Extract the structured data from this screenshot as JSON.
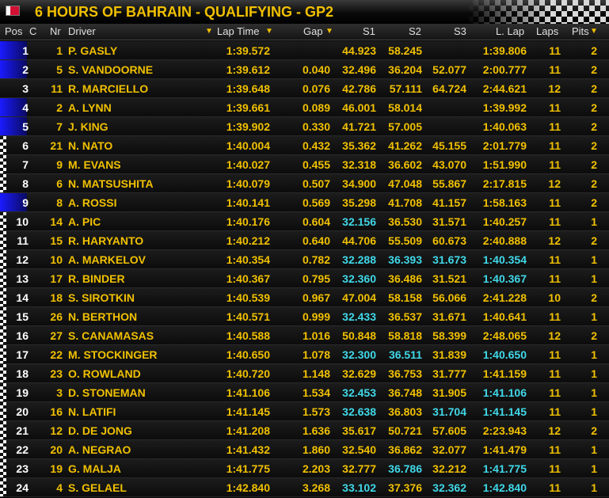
{
  "title": "6 HOURS OF BAHRAIN - QUALIFYING - GP2",
  "headers": {
    "pos": "Pos",
    "c": "C",
    "nr": "Nr",
    "driver": "Driver",
    "lap_time": "Lap Time",
    "gap": "Gap",
    "s1": "S1",
    "s2": "S2",
    "s3": "S3",
    "l_lap": "L. Lap",
    "laps": "Laps",
    "pits": "Pits",
    "sort_arrow": "▼"
  },
  "colors": {
    "accent": "#f0c000",
    "best_sector": "#40d8e8",
    "marker_blue": "#1a1aff"
  },
  "rows": [
    {
      "pos": "1",
      "nr": "1",
      "driver": "P. GASLY",
      "lap_time": "1:39.572",
      "gap": "",
      "s1": "44.923",
      "s2": "58.245",
      "s3": "",
      "l_lap": "1:39.806",
      "laps": "11",
      "pits": "2",
      "marker": "blue",
      "cyan": []
    },
    {
      "pos": "2",
      "nr": "5",
      "driver": "S. VANDOORNE",
      "lap_time": "1:39.612",
      "gap": "0.040",
      "s1": "32.496",
      "s2": "36.204",
      "s3": "52.077",
      "l_lap": "2:00.777",
      "laps": "11",
      "pits": "2",
      "marker": "blue",
      "cyan": []
    },
    {
      "pos": "3",
      "nr": "11",
      "driver": "R. MARCIELLO",
      "lap_time": "1:39.648",
      "gap": "0.076",
      "s1": "42.786",
      "s2": "57.111",
      "s3": "64.724",
      "l_lap": "2:44.621",
      "laps": "12",
      "pits": "2",
      "marker": "none",
      "cyan": []
    },
    {
      "pos": "4",
      "nr": "2",
      "driver": "A. LYNN",
      "lap_time": "1:39.661",
      "gap": "0.089",
      "s1": "46.001",
      "s2": "58.014",
      "s3": "",
      "l_lap": "1:39.992",
      "laps": "11",
      "pits": "2",
      "marker": "blue",
      "cyan": []
    },
    {
      "pos": "5",
      "nr": "7",
      "driver": "J. KING",
      "lap_time": "1:39.902",
      "gap": "0.330",
      "s1": "41.721",
      "s2": "57.005",
      "s3": "",
      "l_lap": "1:40.063",
      "laps": "11",
      "pits": "2",
      "marker": "blue",
      "cyan": []
    },
    {
      "pos": "6",
      "nr": "21",
      "driver": "N. NATO",
      "lap_time": "1:40.004",
      "gap": "0.432",
      "s1": "35.362",
      "s2": "41.262",
      "s3": "45.155",
      "l_lap": "2:01.779",
      "laps": "11",
      "pits": "2",
      "marker": "check",
      "cyan": []
    },
    {
      "pos": "7",
      "nr": "9",
      "driver": "M. EVANS",
      "lap_time": "1:40.027",
      "gap": "0.455",
      "s1": "32.318",
      "s2": "36.602",
      "s3": "43.070",
      "l_lap": "1:51.990",
      "laps": "11",
      "pits": "2",
      "marker": "check",
      "cyan": []
    },
    {
      "pos": "8",
      "nr": "6",
      "driver": "N. MATSUSHITA",
      "lap_time": "1:40.079",
      "gap": "0.507",
      "s1": "34.900",
      "s2": "47.048",
      "s3": "55.867",
      "l_lap": "2:17.815",
      "laps": "12",
      "pits": "2",
      "marker": "check",
      "cyan": []
    },
    {
      "pos": "9",
      "nr": "8",
      "driver": "A. ROSSI",
      "lap_time": "1:40.141",
      "gap": "0.569",
      "s1": "35.298",
      "s2": "41.708",
      "s3": "41.157",
      "l_lap": "1:58.163",
      "laps": "11",
      "pits": "2",
      "marker": "blue",
      "cyan": []
    },
    {
      "pos": "10",
      "nr": "14",
      "driver": "A. PIC",
      "lap_time": "1:40.176",
      "gap": "0.604",
      "s1": "32.156",
      "s2": "36.530",
      "s3": "31.571",
      "l_lap": "1:40.257",
      "laps": "11",
      "pits": "1",
      "marker": "check",
      "cyan": [
        "s1"
      ]
    },
    {
      "pos": "11",
      "nr": "15",
      "driver": "R. HARYANTO",
      "lap_time": "1:40.212",
      "gap": "0.640",
      "s1": "44.706",
      "s2": "55.509",
      "s3": "60.673",
      "l_lap": "2:40.888",
      "laps": "12",
      "pits": "2",
      "marker": "check",
      "cyan": []
    },
    {
      "pos": "12",
      "nr": "10",
      "driver": "A. MARKELOV",
      "lap_time": "1:40.354",
      "gap": "0.782",
      "s1": "32.288",
      "s2": "36.393",
      "s3": "31.673",
      "l_lap": "1:40.354",
      "laps": "11",
      "pits": "1",
      "marker": "check",
      "cyan": [
        "s1",
        "s2",
        "s3",
        "l_lap"
      ]
    },
    {
      "pos": "13",
      "nr": "17",
      "driver": "R. BINDER",
      "lap_time": "1:40.367",
      "gap": "0.795",
      "s1": "32.360",
      "s2": "36.486",
      "s3": "31.521",
      "l_lap": "1:40.367",
      "laps": "11",
      "pits": "1",
      "marker": "check",
      "cyan": [
        "s1",
        "l_lap"
      ]
    },
    {
      "pos": "14",
      "nr": "18",
      "driver": "S. SIROTKIN",
      "lap_time": "1:40.539",
      "gap": "0.967",
      "s1": "47.004",
      "s2": "58.158",
      "s3": "56.066",
      "l_lap": "2:41.228",
      "laps": "10",
      "pits": "2",
      "marker": "check",
      "cyan": []
    },
    {
      "pos": "15",
      "nr": "26",
      "driver": "N. BERTHON",
      "lap_time": "1:40.571",
      "gap": "0.999",
      "s1": "32.433",
      "s2": "36.537",
      "s3": "31.671",
      "l_lap": "1:40.641",
      "laps": "11",
      "pits": "1",
      "marker": "check",
      "cyan": [
        "s1"
      ]
    },
    {
      "pos": "16",
      "nr": "27",
      "driver": "S. CANAMASAS",
      "lap_time": "1:40.588",
      "gap": "1.016",
      "s1": "50.848",
      "s2": "58.818",
      "s3": "58.399",
      "l_lap": "2:48.065",
      "laps": "12",
      "pits": "2",
      "marker": "check",
      "cyan": []
    },
    {
      "pos": "17",
      "nr": "22",
      "driver": "M. STOCKINGER",
      "lap_time": "1:40.650",
      "gap": "1.078",
      "s1": "32.300",
      "s2": "36.511",
      "s3": "31.839",
      "l_lap": "1:40.650",
      "laps": "11",
      "pits": "1",
      "marker": "check",
      "cyan": [
        "s1",
        "s2",
        "l_lap"
      ]
    },
    {
      "pos": "18",
      "nr": "23",
      "driver": "O. ROWLAND",
      "lap_time": "1:40.720",
      "gap": "1.148",
      "s1": "32.629",
      "s2": "36.753",
      "s3": "31.777",
      "l_lap": "1:41.159",
      "laps": "11",
      "pits": "1",
      "marker": "check",
      "cyan": []
    },
    {
      "pos": "19",
      "nr": "3",
      "driver": "D. STONEMAN",
      "lap_time": "1:41.106",
      "gap": "1.534",
      "s1": "32.453",
      "s2": "36.748",
      "s3": "31.905",
      "l_lap": "1:41.106",
      "laps": "11",
      "pits": "1",
      "marker": "check",
      "cyan": [
        "s1",
        "l_lap"
      ]
    },
    {
      "pos": "20",
      "nr": "16",
      "driver": "N. LATIFI",
      "lap_time": "1:41.145",
      "gap": "1.573",
      "s1": "32.638",
      "s2": "36.803",
      "s3": "31.704",
      "l_lap": "1:41.145",
      "laps": "11",
      "pits": "1",
      "marker": "check",
      "cyan": [
        "s1",
        "s3",
        "l_lap"
      ]
    },
    {
      "pos": "21",
      "nr": "12",
      "driver": "D. DE JONG",
      "lap_time": "1:41.208",
      "gap": "1.636",
      "s1": "35.617",
      "s2": "50.721",
      "s3": "57.605",
      "l_lap": "2:23.943",
      "laps": "12",
      "pits": "2",
      "marker": "check",
      "cyan": []
    },
    {
      "pos": "22",
      "nr": "20",
      "driver": "A. NEGRAO",
      "lap_time": "1:41.432",
      "gap": "1.860",
      "s1": "32.540",
      "s2": "36.862",
      "s3": "32.077",
      "l_lap": "1:41.479",
      "laps": "11",
      "pits": "1",
      "marker": "check",
      "cyan": []
    },
    {
      "pos": "23",
      "nr": "19",
      "driver": "G. MALJA",
      "lap_time": "1:41.775",
      "gap": "2.203",
      "s1": "32.777",
      "s2": "36.786",
      "s3": "32.212",
      "l_lap": "1:41.775",
      "laps": "11",
      "pits": "1",
      "marker": "check",
      "cyan": [
        "s2",
        "l_lap"
      ]
    },
    {
      "pos": "24",
      "nr": "4",
      "driver": "S. GELAEL",
      "lap_time": "1:42.840",
      "gap": "3.268",
      "s1": "33.102",
      "s2": "37.376",
      "s3": "32.362",
      "l_lap": "1:42.840",
      "laps": "11",
      "pits": "1",
      "marker": "check",
      "cyan": [
        "s1",
        "s3",
        "l_lap"
      ]
    }
  ]
}
